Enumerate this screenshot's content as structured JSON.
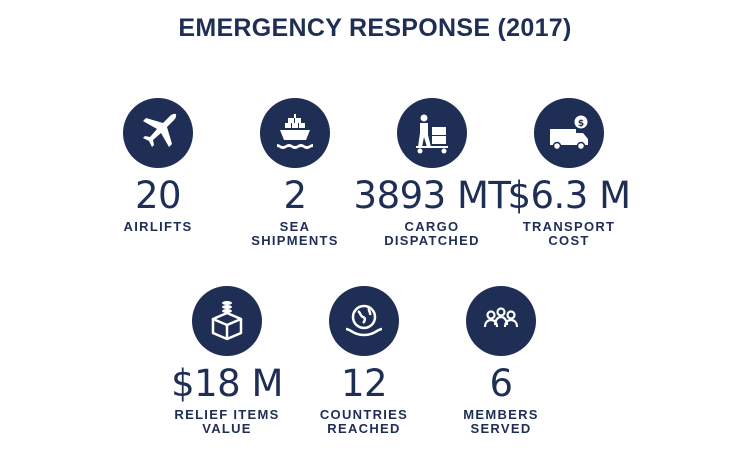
{
  "title": "EMERGENCY RESPONSE (2017)",
  "stats": [
    {
      "value": "20",
      "label": [
        "AIRLIFTS"
      ],
      "icon": "airplane-icon"
    },
    {
      "value": "2",
      "label": [
        "SEA",
        "SHIPMENTS"
      ],
      "icon": "ship-icon"
    },
    {
      "value": "3893 MT",
      "label": [
        "CARGO",
        "DISPATCHED"
      ],
      "icon": "cargo-handcart-icon"
    },
    {
      "value": "$6.3 M",
      "label": [
        "TRANSPORT",
        "COST"
      ],
      "icon": "delivery-van-icon"
    },
    {
      "value": "$18 M",
      "label": [
        "RELIEF ITEMS",
        "VALUE"
      ],
      "icon": "box-coins-icon"
    },
    {
      "value": "12",
      "label": [
        "COUNTRIES",
        "REACHED"
      ],
      "icon": "globe-hands-icon"
    },
    {
      "value": "6",
      "label": [
        "MEMBERS",
        "SERVED"
      ],
      "icon": "people-group-icon"
    }
  ],
  "colors": {
    "navy": "#1f2e55",
    "background": "#ffffff"
  }
}
